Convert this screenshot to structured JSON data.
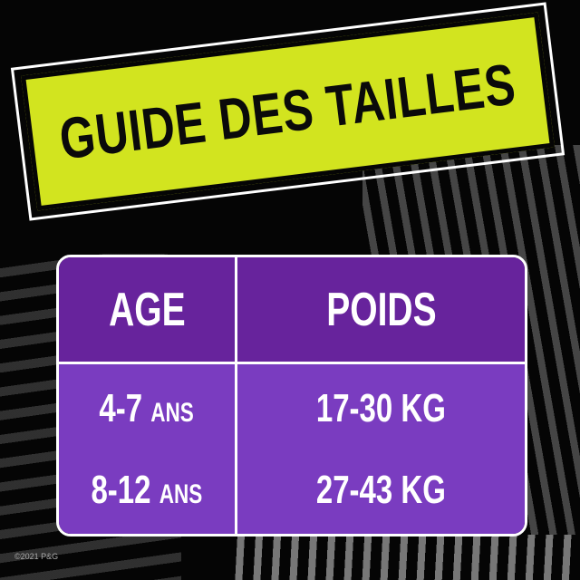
{
  "banner": {
    "title": "GUIDE DES TAILLES"
  },
  "table": {
    "headers": [
      "AGE",
      "POIDS"
    ],
    "rows": [
      {
        "age_num": "4-7",
        "age_unit": "ANS",
        "weight": "17-30 KG"
      },
      {
        "age_num": "8-12",
        "age_unit": "ANS",
        "weight": "27-43 KG"
      }
    ]
  },
  "footer": {
    "copyright": "©2021 P&G"
  },
  "colors": {
    "banner": "#d2e41f",
    "header": "#67239c",
    "body": "#7a3cc0",
    "background": "#050505"
  }
}
